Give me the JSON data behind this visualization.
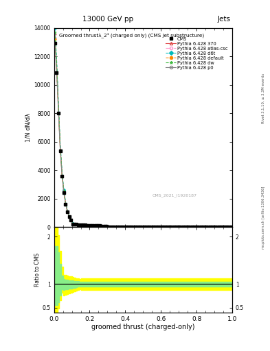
{
  "title_top": "13000 GeV pp",
  "title_right": "Jets",
  "plot_title": "Groomed thrustλ_2¹ (charged only) (CMS jet substructure)",
  "xlabel": "groomed thrust (charged-only)",
  "ylabel_main": "1/N dN/dλ",
  "ylabel_ratio": "Ratio to CMS",
  "right_label_top": "Rivet 3.1.10, ≥ 3.3M events",
  "right_label_bot": "mcplots.cern.ch [arXiv:1306.3436]",
  "watermark": "CMS_2021_I1920187",
  "xlim": [
    0.0,
    1.0
  ],
  "ylim_main_lo": 0,
  "ylim_main_hi": 14000,
  "yticks_main": [
    0,
    2000,
    4000,
    6000,
    8000,
    10000,
    12000,
    14000
  ],
  "ylim_ratio_lo": 0.4,
  "ylim_ratio_hi": 2.2,
  "ratio_yticks": [
    0.5,
    1.0,
    2.0
  ],
  "legend_entries": [
    {
      "label": "CMS",
      "color": "#000000",
      "marker": "s",
      "linestyle": "none",
      "mfc": "#000000"
    },
    {
      "label": "Pythia 6.428 370",
      "color": "#e05050",
      "marker": "^",
      "linestyle": "-",
      "mfc": "none"
    },
    {
      "label": "Pythia 6.428 atlas-csc",
      "color": "#ff99cc",
      "marker": "o",
      "linestyle": "-.",
      "mfc": "none"
    },
    {
      "label": "Pythia 6.428 d6t",
      "color": "#00bbbb",
      "marker": "D",
      "linestyle": "--",
      "mfc": "#00bbbb"
    },
    {
      "label": "Pythia 6.428 default",
      "color": "#ff8800",
      "marker": "o",
      "linestyle": "--",
      "mfc": "#ff8800"
    },
    {
      "label": "Pythia 6.428 dw",
      "color": "#44bb44",
      "marker": "*",
      "linestyle": "--",
      "mfc": "#44bb44"
    },
    {
      "label": "Pythia 6.428 p0",
      "color": "#888888",
      "marker": "o",
      "linestyle": "-",
      "mfc": "none"
    }
  ],
  "cms_color": "#000000",
  "band_yellow": "#ffff00",
  "band_green": "#88ee88",
  "bg_color": "#ffffff"
}
